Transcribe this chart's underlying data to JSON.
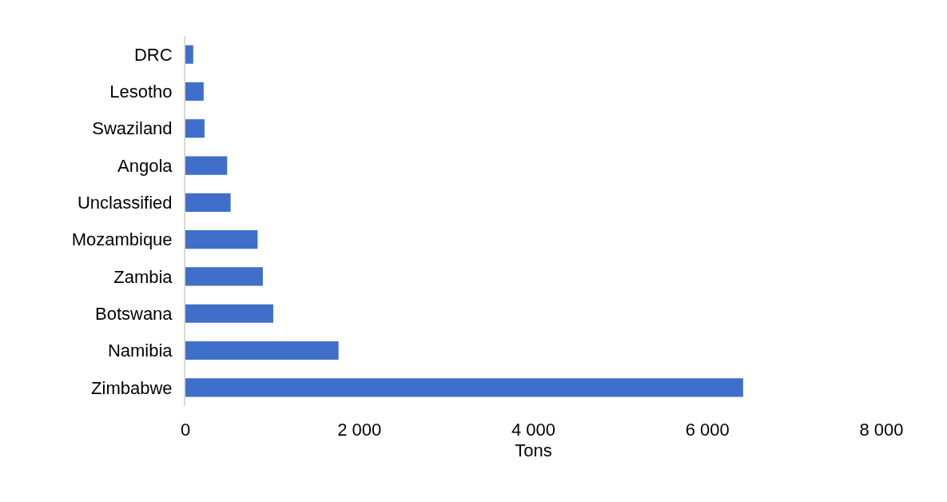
{
  "chart_data": {
    "type": "bar",
    "orientation": "horizontal",
    "xlabel": "Tons",
    "categories": [
      "DRC",
      "Lesotho",
      "Swaziland",
      "Angola",
      "Unclassified",
      "Mozambique",
      "Zambia",
      "Botswana",
      "Namibia",
      "Zimbabwe"
    ],
    "values": [
      90,
      210,
      220,
      480,
      520,
      830,
      890,
      1010,
      1760,
      6410
    ],
    "color": "#3f6fca",
    "xlim": [
      0,
      8000
    ],
    "xticks": [
      0,
      {
        "value": 2000,
        "label": "2 000"
      },
      {
        "value": 4000,
        "label": "4 000"
      },
      {
        "value": 6000,
        "label": "6 000"
      },
      {
        "value": 8000,
        "label": "8 000"
      }
    ],
    "grid": false
  }
}
